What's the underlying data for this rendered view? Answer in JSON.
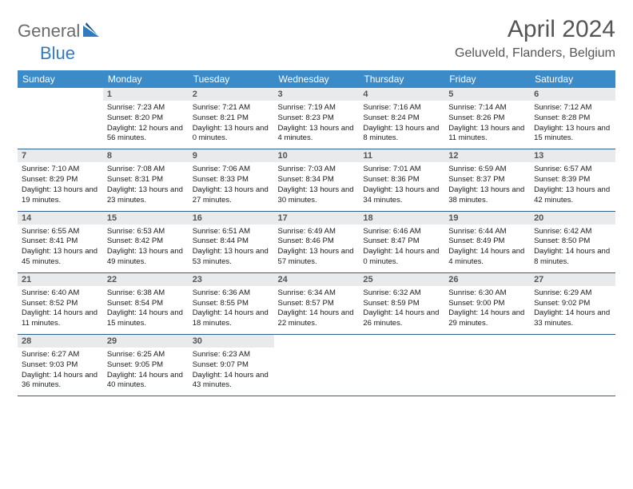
{
  "logo": {
    "general": "General",
    "blue": "Blue"
  },
  "title": "April 2024",
  "location": "Geluveld, Flanders, Belgium",
  "colors": {
    "header_bg": "#3b8bc9",
    "header_text": "#ffffff",
    "daynum_bg": "#e8eaec",
    "cell_border": "#2f5f8a",
    "logo_gray": "#6b6b6b",
    "logo_blue": "#2f7bbf"
  },
  "weekdays": [
    "Sunday",
    "Monday",
    "Tuesday",
    "Wednesday",
    "Thursday",
    "Friday",
    "Saturday"
  ],
  "start_blank": 1,
  "days": [
    {
      "n": 1,
      "sr": "7:23 AM",
      "ss": "8:20 PM",
      "dl": "12 hours and 56 minutes."
    },
    {
      "n": 2,
      "sr": "7:21 AM",
      "ss": "8:21 PM",
      "dl": "13 hours and 0 minutes."
    },
    {
      "n": 3,
      "sr": "7:19 AM",
      "ss": "8:23 PM",
      "dl": "13 hours and 4 minutes."
    },
    {
      "n": 4,
      "sr": "7:16 AM",
      "ss": "8:24 PM",
      "dl": "13 hours and 8 minutes."
    },
    {
      "n": 5,
      "sr": "7:14 AM",
      "ss": "8:26 PM",
      "dl": "13 hours and 11 minutes."
    },
    {
      "n": 6,
      "sr": "7:12 AM",
      "ss": "8:28 PM",
      "dl": "13 hours and 15 minutes."
    },
    {
      "n": 7,
      "sr": "7:10 AM",
      "ss": "8:29 PM",
      "dl": "13 hours and 19 minutes."
    },
    {
      "n": 8,
      "sr": "7:08 AM",
      "ss": "8:31 PM",
      "dl": "13 hours and 23 minutes."
    },
    {
      "n": 9,
      "sr": "7:06 AM",
      "ss": "8:33 PM",
      "dl": "13 hours and 27 minutes."
    },
    {
      "n": 10,
      "sr": "7:03 AM",
      "ss": "8:34 PM",
      "dl": "13 hours and 30 minutes."
    },
    {
      "n": 11,
      "sr": "7:01 AM",
      "ss": "8:36 PM",
      "dl": "13 hours and 34 minutes."
    },
    {
      "n": 12,
      "sr": "6:59 AM",
      "ss": "8:37 PM",
      "dl": "13 hours and 38 minutes."
    },
    {
      "n": 13,
      "sr": "6:57 AM",
      "ss": "8:39 PM",
      "dl": "13 hours and 42 minutes."
    },
    {
      "n": 14,
      "sr": "6:55 AM",
      "ss": "8:41 PM",
      "dl": "13 hours and 45 minutes."
    },
    {
      "n": 15,
      "sr": "6:53 AM",
      "ss": "8:42 PM",
      "dl": "13 hours and 49 minutes."
    },
    {
      "n": 16,
      "sr": "6:51 AM",
      "ss": "8:44 PM",
      "dl": "13 hours and 53 minutes."
    },
    {
      "n": 17,
      "sr": "6:49 AM",
      "ss": "8:46 PM",
      "dl": "13 hours and 57 minutes."
    },
    {
      "n": 18,
      "sr": "6:46 AM",
      "ss": "8:47 PM",
      "dl": "14 hours and 0 minutes."
    },
    {
      "n": 19,
      "sr": "6:44 AM",
      "ss": "8:49 PM",
      "dl": "14 hours and 4 minutes."
    },
    {
      "n": 20,
      "sr": "6:42 AM",
      "ss": "8:50 PM",
      "dl": "14 hours and 8 minutes."
    },
    {
      "n": 21,
      "sr": "6:40 AM",
      "ss": "8:52 PM",
      "dl": "14 hours and 11 minutes."
    },
    {
      "n": 22,
      "sr": "6:38 AM",
      "ss": "8:54 PM",
      "dl": "14 hours and 15 minutes."
    },
    {
      "n": 23,
      "sr": "6:36 AM",
      "ss": "8:55 PM",
      "dl": "14 hours and 18 minutes."
    },
    {
      "n": 24,
      "sr": "6:34 AM",
      "ss": "8:57 PM",
      "dl": "14 hours and 22 minutes."
    },
    {
      "n": 25,
      "sr": "6:32 AM",
      "ss": "8:59 PM",
      "dl": "14 hours and 26 minutes."
    },
    {
      "n": 26,
      "sr": "6:30 AM",
      "ss": "9:00 PM",
      "dl": "14 hours and 29 minutes."
    },
    {
      "n": 27,
      "sr": "6:29 AM",
      "ss": "9:02 PM",
      "dl": "14 hours and 33 minutes."
    },
    {
      "n": 28,
      "sr": "6:27 AM",
      "ss": "9:03 PM",
      "dl": "14 hours and 36 minutes."
    },
    {
      "n": 29,
      "sr": "6:25 AM",
      "ss": "9:05 PM",
      "dl": "14 hours and 40 minutes."
    },
    {
      "n": 30,
      "sr": "6:23 AM",
      "ss": "9:07 PM",
      "dl": "14 hours and 43 minutes."
    }
  ]
}
